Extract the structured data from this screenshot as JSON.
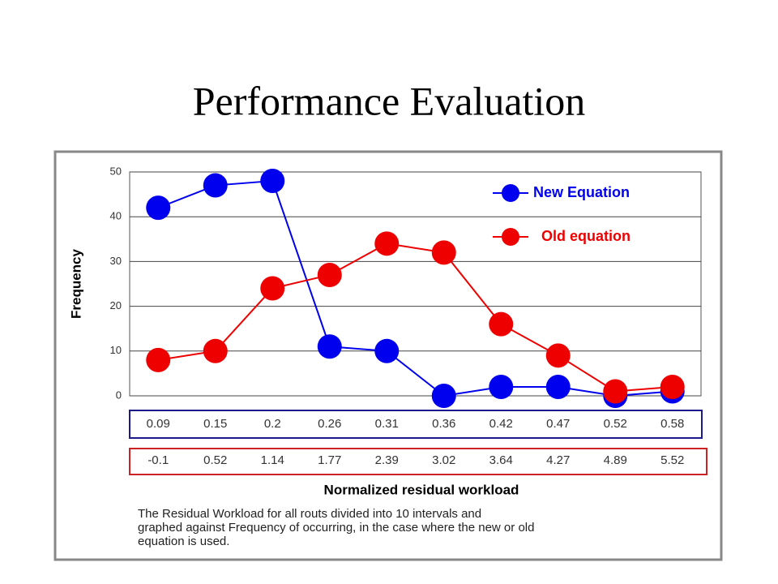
{
  "slide_title": "Performance Evaluation",
  "chart_data": {
    "type": "line",
    "ylabel": "Frequency",
    "xlabel": "Normalized residual workload",
    "caption": [
      "The Residual Workload for all routs divided into 10 intervals and",
      "graphed against Frequency of occurring, in the case where the new or old",
      "equation is used."
    ],
    "categories": [
      "0.09",
      "0.15",
      "0.2",
      "0.26",
      "0.31",
      "0.36",
      "0.42",
      "0.47",
      "0.52",
      "0.58"
    ],
    "categories2": [
      "-0.1",
      "0.52",
      "1.14",
      "1.77",
      "2.39",
      "3.02",
      "3.64",
      "4.27",
      "4.89",
      "5.52"
    ],
    "series": [
      {
        "name": "New Equation",
        "color": "#0000ee",
        "values": [
          42,
          47,
          48,
          11,
          10,
          0,
          2,
          2,
          0,
          1
        ]
      },
      {
        "name": "Old equation",
        "color": "#ee0000",
        "values": [
          8,
          10,
          24,
          27,
          34,
          32,
          16,
          9,
          1,
          2
        ]
      }
    ],
    "ylim": [
      0,
      50
    ],
    "yticks": [
      0,
      10,
      20,
      30,
      40,
      50
    ],
    "grid": true,
    "legend": "top-right"
  }
}
